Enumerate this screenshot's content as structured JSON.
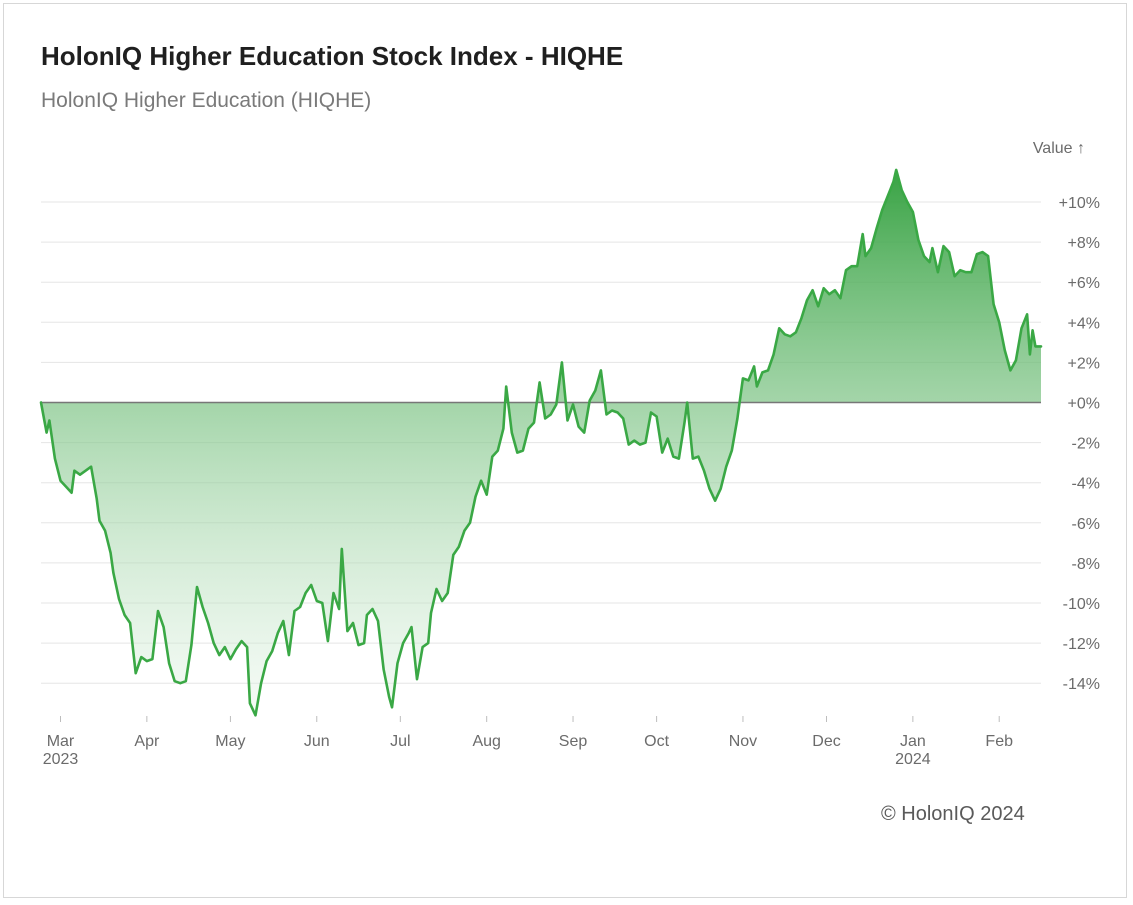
{
  "header": {
    "title": "HolonIQ Higher Education Stock Index - HIQHE",
    "subtitle": "HolonIQ Higher Education (HIQHE)"
  },
  "footer": {
    "credit": "© HolonIQ 2024"
  },
  "colors": {
    "line": "#3aa845",
    "fill_top": "#2e9e3a",
    "fill_bottom": "#e6f5e8",
    "grid": "#e5e5e5",
    "baseline": "#777777"
  },
  "chart_data": {
    "type": "area",
    "title": "HolonIQ Higher Education Stock Index - HIQHE",
    "subtitle": "HolonIQ Higher Education (HIQHE)",
    "ylabel": "Value ↑",
    "y_unit": "%",
    "ylim": [
      -15.8,
      11.6
    ],
    "y_ticks": [
      10,
      8,
      6,
      4,
      2,
      0,
      -2,
      -4,
      -6,
      -8,
      -10,
      -12,
      -14
    ],
    "y_tick_labels": [
      "+10%",
      "+8%",
      "+6%",
      "+4%",
      "+2%",
      "+0%",
      "-2%",
      "-4%",
      "-6%",
      "-8%",
      "-10%",
      "-12%",
      "-14%"
    ],
    "grid": true,
    "x_ticks": [
      {
        "date": "2023-03-01",
        "label": "Mar",
        "sublabel": "2023"
      },
      {
        "date": "2023-04-01",
        "label": "Apr",
        "sublabel": ""
      },
      {
        "date": "2023-05-01",
        "label": "May",
        "sublabel": ""
      },
      {
        "date": "2023-06-01",
        "label": "Jun",
        "sublabel": ""
      },
      {
        "date": "2023-07-01",
        "label": "Jul",
        "sublabel": ""
      },
      {
        "date": "2023-08-01",
        "label": "Aug",
        "sublabel": ""
      },
      {
        "date": "2023-09-01",
        "label": "Sep",
        "sublabel": ""
      },
      {
        "date": "2023-10-01",
        "label": "Oct",
        "sublabel": ""
      },
      {
        "date": "2023-11-01",
        "label": "Nov",
        "sublabel": ""
      },
      {
        "date": "2023-12-01",
        "label": "Dec",
        "sublabel": ""
      },
      {
        "date": "2024-01-01",
        "label": "Jan",
        "sublabel": "2024"
      },
      {
        "date": "2024-02-01",
        "label": "Feb",
        "sublabel": ""
      }
    ],
    "xlim": [
      "2023-02-22",
      "2024-02-16"
    ],
    "series": [
      {
        "points": [
          [
            "2023-02-22",
            0.0
          ],
          [
            "2023-02-24",
            -1.5
          ],
          [
            "2023-02-25",
            -0.9
          ],
          [
            "2023-02-27",
            -2.8
          ],
          [
            "2023-03-01",
            -3.9
          ],
          [
            "2023-03-03",
            -4.2
          ],
          [
            "2023-03-05",
            -4.5
          ],
          [
            "2023-03-06",
            -3.4
          ],
          [
            "2023-03-08",
            -3.6
          ],
          [
            "2023-03-10",
            -3.4
          ],
          [
            "2023-03-12",
            -3.2
          ],
          [
            "2023-03-14",
            -4.8
          ],
          [
            "2023-03-15",
            -5.9
          ],
          [
            "2023-03-17",
            -6.4
          ],
          [
            "2023-03-19",
            -7.5
          ],
          [
            "2023-03-20",
            -8.5
          ],
          [
            "2023-03-22",
            -9.8
          ],
          [
            "2023-03-24",
            -10.6
          ],
          [
            "2023-03-26",
            -11.0
          ],
          [
            "2023-03-28",
            -13.5
          ],
          [
            "2023-03-30",
            -12.7
          ],
          [
            "2023-04-01",
            -12.9
          ],
          [
            "2023-04-03",
            -12.8
          ],
          [
            "2023-04-05",
            -10.4
          ],
          [
            "2023-04-07",
            -11.2
          ],
          [
            "2023-04-09",
            -13.0
          ],
          [
            "2023-04-11",
            -13.9
          ],
          [
            "2023-04-13",
            -14.0
          ],
          [
            "2023-04-15",
            -13.9
          ],
          [
            "2023-04-17",
            -12.1
          ],
          [
            "2023-04-19",
            -9.2
          ],
          [
            "2023-04-21",
            -10.2
          ],
          [
            "2023-04-23",
            -11.0
          ],
          [
            "2023-04-25",
            -12.0
          ],
          [
            "2023-04-27",
            -12.6
          ],
          [
            "2023-04-29",
            -12.2
          ],
          [
            "2023-05-01",
            -12.8
          ],
          [
            "2023-05-03",
            -12.3
          ],
          [
            "2023-05-05",
            -11.9
          ],
          [
            "2023-05-07",
            -12.2
          ],
          [
            "2023-05-08",
            -15.0
          ],
          [
            "2023-05-10",
            -15.6
          ],
          [
            "2023-05-12",
            -14.0
          ],
          [
            "2023-05-14",
            -12.9
          ],
          [
            "2023-05-16",
            -12.4
          ],
          [
            "2023-05-18",
            -11.5
          ],
          [
            "2023-05-20",
            -10.9
          ],
          [
            "2023-05-22",
            -12.6
          ],
          [
            "2023-05-24",
            -10.4
          ],
          [
            "2023-05-26",
            -10.2
          ],
          [
            "2023-05-28",
            -9.5
          ],
          [
            "2023-05-30",
            -9.1
          ],
          [
            "2023-06-01",
            -9.9
          ],
          [
            "2023-06-03",
            -10.0
          ],
          [
            "2023-06-05",
            -11.9
          ],
          [
            "2023-06-07",
            -9.5
          ],
          [
            "2023-06-09",
            -10.3
          ],
          [
            "2023-06-10",
            -7.3
          ],
          [
            "2023-06-12",
            -11.4
          ],
          [
            "2023-06-14",
            -11.0
          ],
          [
            "2023-06-16",
            -12.1
          ],
          [
            "2023-06-18",
            -12.0
          ],
          [
            "2023-06-19",
            -10.6
          ],
          [
            "2023-06-21",
            -10.3
          ],
          [
            "2023-06-23",
            -10.9
          ],
          [
            "2023-06-25",
            -13.3
          ],
          [
            "2023-06-27",
            -14.7
          ],
          [
            "2023-06-28",
            -15.2
          ],
          [
            "2023-06-30",
            -13.0
          ],
          [
            "2023-07-02",
            -12.0
          ],
          [
            "2023-07-04",
            -11.5
          ],
          [
            "2023-07-05",
            -11.2
          ],
          [
            "2023-07-07",
            -13.8
          ],
          [
            "2023-07-09",
            -12.2
          ],
          [
            "2023-07-11",
            -12.0
          ],
          [
            "2023-07-12",
            -10.5
          ],
          [
            "2023-07-14",
            -9.3
          ],
          [
            "2023-07-16",
            -9.9
          ],
          [
            "2023-07-18",
            -9.5
          ],
          [
            "2023-07-20",
            -7.6
          ],
          [
            "2023-07-22",
            -7.2
          ],
          [
            "2023-07-24",
            -6.4
          ],
          [
            "2023-07-26",
            -6.0
          ],
          [
            "2023-07-28",
            -4.7
          ],
          [
            "2023-07-30",
            -3.9
          ],
          [
            "2023-08-01",
            -4.6
          ],
          [
            "2023-08-03",
            -2.7
          ],
          [
            "2023-08-05",
            -2.4
          ],
          [
            "2023-08-07",
            -1.3
          ],
          [
            "2023-08-08",
            0.8
          ],
          [
            "2023-08-10",
            -1.5
          ],
          [
            "2023-08-12",
            -2.5
          ],
          [
            "2023-08-14",
            -2.4
          ],
          [
            "2023-08-16",
            -1.3
          ],
          [
            "2023-08-18",
            -1.0
          ],
          [
            "2023-08-20",
            1.0
          ],
          [
            "2023-08-22",
            -0.8
          ],
          [
            "2023-08-24",
            -0.6
          ],
          [
            "2023-08-26",
            -0.1
          ],
          [
            "2023-08-28",
            2.0
          ],
          [
            "2023-08-30",
            -0.9
          ],
          [
            "2023-09-01",
            -0.1
          ],
          [
            "2023-09-03",
            -1.2
          ],
          [
            "2023-09-05",
            -1.5
          ],
          [
            "2023-09-07",
            0.1
          ],
          [
            "2023-09-09",
            0.6
          ],
          [
            "2023-09-11",
            1.6
          ],
          [
            "2023-09-13",
            -0.6
          ],
          [
            "2023-09-15",
            -0.4
          ],
          [
            "2023-09-17",
            -0.5
          ],
          [
            "2023-09-19",
            -0.8
          ],
          [
            "2023-09-21",
            -2.1
          ],
          [
            "2023-09-23",
            -1.9
          ],
          [
            "2023-09-25",
            -2.1
          ],
          [
            "2023-09-27",
            -2.0
          ],
          [
            "2023-09-29",
            -0.5
          ],
          [
            "2023-10-01",
            -0.7
          ],
          [
            "2023-10-03",
            -2.5
          ],
          [
            "2023-10-05",
            -1.8
          ],
          [
            "2023-10-07",
            -2.7
          ],
          [
            "2023-10-09",
            -2.8
          ],
          [
            "2023-10-11",
            -1.0
          ],
          [
            "2023-10-12",
            0.0
          ],
          [
            "2023-10-14",
            -2.8
          ],
          [
            "2023-10-16",
            -2.7
          ],
          [
            "2023-10-18",
            -3.4
          ],
          [
            "2023-10-20",
            -4.3
          ],
          [
            "2023-10-22",
            -4.9
          ],
          [
            "2023-10-24",
            -4.3
          ],
          [
            "2023-10-26",
            -3.2
          ],
          [
            "2023-10-28",
            -2.4
          ],
          [
            "2023-10-30",
            -0.8
          ],
          [
            "2023-11-01",
            1.2
          ],
          [
            "2023-11-03",
            1.1
          ],
          [
            "2023-11-05",
            1.8
          ],
          [
            "2023-11-06",
            0.8
          ],
          [
            "2023-11-08",
            1.5
          ],
          [
            "2023-11-10",
            1.6
          ],
          [
            "2023-11-12",
            2.4
          ],
          [
            "2023-11-14",
            3.7
          ],
          [
            "2023-11-16",
            3.4
          ],
          [
            "2023-11-18",
            3.3
          ],
          [
            "2023-11-20",
            3.5
          ],
          [
            "2023-11-22",
            4.2
          ],
          [
            "2023-11-24",
            5.1
          ],
          [
            "2023-11-26",
            5.6
          ],
          [
            "2023-11-28",
            4.8
          ],
          [
            "2023-11-30",
            5.7
          ],
          [
            "2023-12-02",
            5.4
          ],
          [
            "2023-12-04",
            5.6
          ],
          [
            "2023-12-06",
            5.2
          ],
          [
            "2023-12-08",
            6.6
          ],
          [
            "2023-12-10",
            6.8
          ],
          [
            "2023-12-12",
            6.8
          ],
          [
            "2023-12-14",
            8.4
          ],
          [
            "2023-12-15",
            7.3
          ],
          [
            "2023-12-17",
            7.7
          ],
          [
            "2023-12-19",
            8.7
          ],
          [
            "2023-12-21",
            9.6
          ],
          [
            "2023-12-23",
            10.3
          ],
          [
            "2023-12-25",
            11.0
          ],
          [
            "2023-12-26",
            11.6
          ],
          [
            "2023-12-28",
            10.6
          ],
          [
            "2023-12-30",
            10.0
          ],
          [
            "2024-01-01",
            9.5
          ],
          [
            "2024-01-03",
            8.1
          ],
          [
            "2024-01-05",
            7.3
          ],
          [
            "2024-01-07",
            7.0
          ],
          [
            "2024-01-08",
            7.7
          ],
          [
            "2024-01-10",
            6.5
          ],
          [
            "2024-01-12",
            7.8
          ],
          [
            "2024-01-14",
            7.5
          ],
          [
            "2024-01-16",
            6.3
          ],
          [
            "2024-01-18",
            6.6
          ],
          [
            "2024-01-20",
            6.5
          ],
          [
            "2024-01-22",
            6.5
          ],
          [
            "2024-01-24",
            7.4
          ],
          [
            "2024-01-26",
            7.5
          ],
          [
            "2024-01-28",
            7.3
          ],
          [
            "2024-01-30",
            4.9
          ],
          [
            "2024-02-01",
            4.0
          ],
          [
            "2024-02-03",
            2.6
          ],
          [
            "2024-02-05",
            1.6
          ],
          [
            "2024-02-07",
            2.1
          ],
          [
            "2024-02-09",
            3.7
          ],
          [
            "2024-02-11",
            4.4
          ],
          [
            "2024-02-12",
            2.4
          ],
          [
            "2024-02-13",
            3.6
          ],
          [
            "2024-02-14",
            2.8
          ],
          [
            "2024-02-16",
            2.8
          ]
        ]
      }
    ]
  }
}
